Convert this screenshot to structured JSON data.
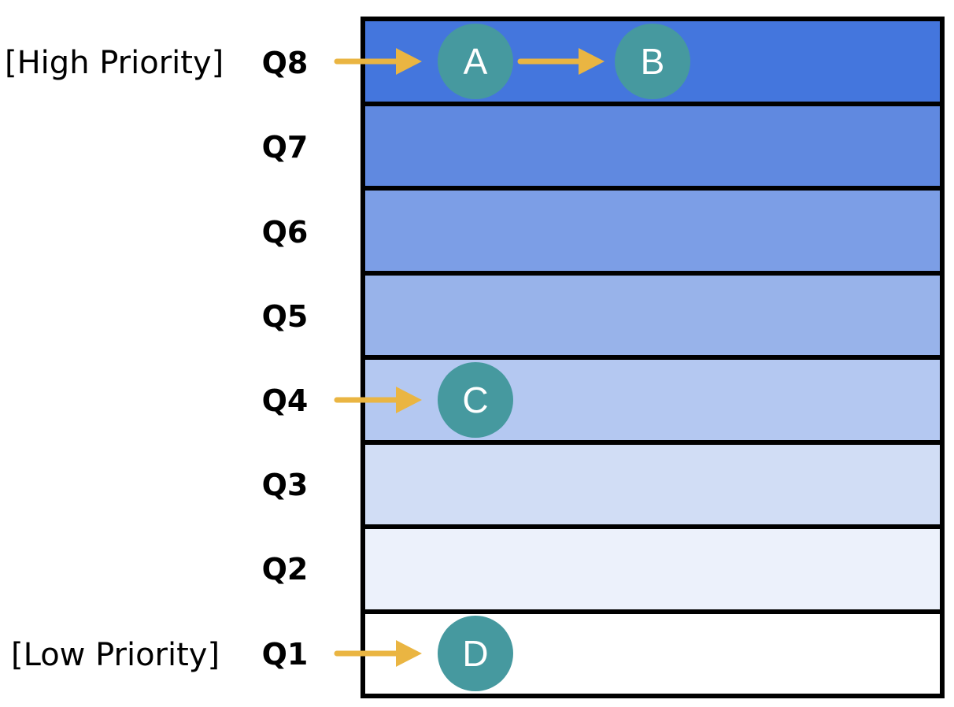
{
  "priority_labels": {
    "high": "[High Priority]",
    "low": "[Low Priority]"
  },
  "queues": [
    {
      "label": "Q8",
      "color": "#4476dd"
    },
    {
      "label": "Q7",
      "color": "#6089e0"
    },
    {
      "label": "Q6",
      "color": "#7c9ee6"
    },
    {
      "label": "Q5",
      "color": "#98b3ea"
    },
    {
      "label": "Q4",
      "color": "#b4c8f1"
    },
    {
      "label": "Q3",
      "color": "#d1ddf5"
    },
    {
      "label": "Q2",
      "color": "#ecf1fb"
    },
    {
      "label": "Q1",
      "color": "#ffffff"
    }
  ],
  "nodes": [
    {
      "label": "A",
      "queue": "Q8"
    },
    {
      "label": "B",
      "queue": "Q8"
    },
    {
      "label": "C",
      "queue": "Q4"
    },
    {
      "label": "D",
      "queue": "Q1"
    }
  ],
  "colors": {
    "node_fill": "#46999f",
    "arrow": "#eab542",
    "border": "#000000"
  }
}
